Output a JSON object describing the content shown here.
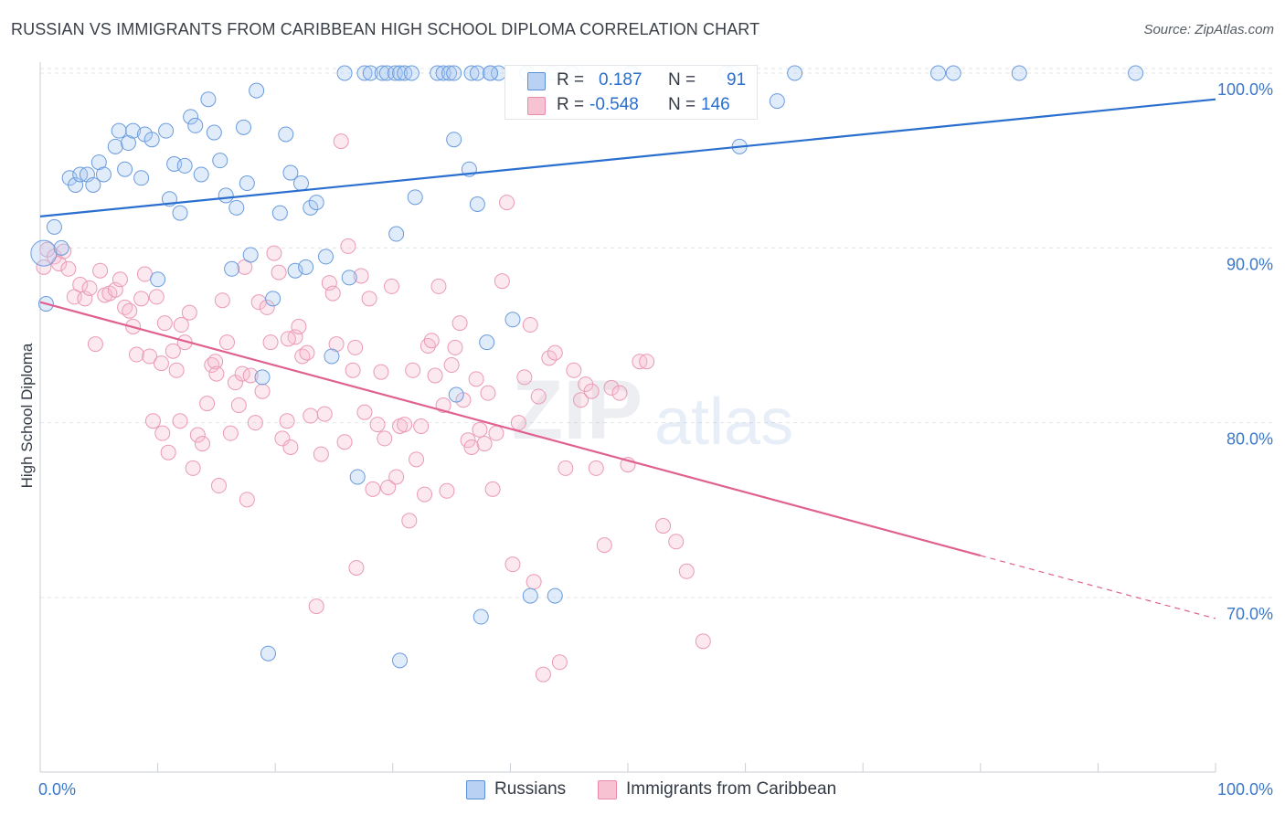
{
  "title": "RUSSIAN VS IMMIGRANTS FROM CARIBBEAN HIGH SCHOOL DIPLOMA CORRELATION CHART",
  "source": "Source: ZipAtlas.com",
  "watermark": {
    "zip": "ZIP",
    "atlas": "atlas"
  },
  "colors": {
    "russians": "#5b8fd6",
    "caribbean": "#e88aa8",
    "russians_line": "#2a6fd0",
    "caribbean_line": "#e0608f",
    "axis_label": "#3b78c9"
  },
  "stats": {
    "russians": {
      "r_label": "R =",
      "r_value": "0.187",
      "n_label": "N =",
      "n_value": "91"
    },
    "caribbean": {
      "r_label": "R =",
      "r_value": "-0.548",
      "n_label": "N =",
      "n_value": "146"
    }
  },
  "legend": {
    "russians": "Russians",
    "caribbean": "Immigrants from Caribbean"
  },
  "chart_data": {
    "type": "scatter",
    "title": "RUSSIAN VS IMMIGRANTS FROM CARIBBEAN HIGH SCHOOL DIPLOMA CORRELATION CHART",
    "xlabel": "",
    "ylabel": "High School Diploma",
    "xlim": [
      0,
      100
    ],
    "ylim": [
      59.5,
      102
    ],
    "x_tick_labels": [
      "0.0%",
      "100.0%"
    ],
    "y_ticks": [
      70,
      80,
      90,
      100
    ],
    "y_tick_labels": [
      "70.0%",
      "80.0%",
      "90.0%",
      "100.0%"
    ],
    "grid": true,
    "legend_position": "bottom-center",
    "series": [
      {
        "name": "Russians",
        "trend": [
          [
            0,
            91.8
          ],
          [
            100,
            98.5
          ]
        ],
        "points": [
          [
            0.3,
            89.7
          ],
          [
            0.5,
            86.8
          ],
          [
            1.2,
            91.2
          ],
          [
            1.8,
            90.0
          ],
          [
            2.5,
            94.0
          ],
          [
            3.0,
            93.6
          ],
          [
            3.4,
            94.2
          ],
          [
            4.0,
            94.2
          ],
          [
            4.5,
            93.6
          ],
          [
            5.0,
            94.9
          ],
          [
            5.4,
            94.2
          ],
          [
            6.4,
            95.8
          ],
          [
            6.7,
            96.7
          ],
          [
            7.2,
            94.5
          ],
          [
            7.5,
            96.0
          ],
          [
            7.9,
            96.7
          ],
          [
            8.6,
            94.0
          ],
          [
            8.9,
            96.5
          ],
          [
            9.5,
            96.2
          ],
          [
            10.0,
            88.2
          ],
          [
            10.7,
            96.7
          ],
          [
            11.0,
            92.8
          ],
          [
            11.4,
            94.8
          ],
          [
            11.9,
            92.0
          ],
          [
            12.3,
            94.7
          ],
          [
            12.8,
            97.5
          ],
          [
            13.2,
            97.0
          ],
          [
            13.7,
            94.2
          ],
          [
            14.3,
            98.5
          ],
          [
            14.8,
            96.6
          ],
          [
            15.3,
            95.0
          ],
          [
            15.8,
            93.0
          ],
          [
            16.3,
            88.8
          ],
          [
            16.7,
            92.3
          ],
          [
            17.3,
            96.9
          ],
          [
            17.6,
            93.7
          ],
          [
            17.9,
            89.6
          ],
          [
            18.4,
            99.0
          ],
          [
            18.9,
            82.6
          ],
          [
            19.4,
            66.8
          ],
          [
            19.8,
            87.1
          ],
          [
            20.4,
            92.0
          ],
          [
            20.9,
            96.5
          ],
          [
            21.3,
            94.3
          ],
          [
            21.7,
            88.7
          ],
          [
            22.2,
            93.7
          ],
          [
            22.6,
            88.9
          ],
          [
            23.0,
            92.3
          ],
          [
            23.5,
            92.6
          ],
          [
            24.3,
            89.5
          ],
          [
            24.8,
            83.8
          ],
          [
            25.9,
            100.0
          ],
          [
            26.3,
            88.3
          ],
          [
            27.0,
            76.9
          ],
          [
            27.6,
            100.0
          ],
          [
            28.1,
            100.0
          ],
          [
            29.1,
            100.0
          ],
          [
            29.5,
            100.0
          ],
          [
            30.2,
            100.0
          ],
          [
            30.6,
            100.0
          ],
          [
            31.0,
            100.0
          ],
          [
            31.6,
            100.0
          ],
          [
            33.8,
            100.0
          ],
          [
            34.3,
            100.0
          ],
          [
            34.8,
            100.0
          ],
          [
            35.2,
            100.0
          ],
          [
            36.7,
            100.0
          ],
          [
            37.2,
            100.0
          ],
          [
            38.3,
            100.0
          ],
          [
            39.0,
            100.0
          ],
          [
            30.3,
            90.8
          ],
          [
            30.6,
            66.4
          ],
          [
            31.9,
            92.9
          ],
          [
            35.2,
            96.2
          ],
          [
            35.4,
            81.6
          ],
          [
            36.5,
            94.5
          ],
          [
            37.2,
            92.5
          ],
          [
            37.5,
            68.9
          ],
          [
            38.0,
            84.6
          ],
          [
            38.3,
            100.0
          ],
          [
            40.2,
            85.9
          ],
          [
            41.4,
            100.0
          ],
          [
            41.7,
            70.1
          ],
          [
            43.6,
            100.0
          ],
          [
            43.8,
            70.1
          ],
          [
            45.2,
            100.0
          ],
          [
            50.3,
            100.0
          ],
          [
            58.4,
            100.0
          ],
          [
            58.9,
            100.0
          ],
          [
            59.5,
            95.8
          ],
          [
            62.7,
            98.4
          ],
          [
            64.2,
            100.0
          ],
          [
            76.4,
            100.0
          ],
          [
            77.7,
            100.0
          ],
          [
            83.3,
            100.0
          ],
          [
            93.2,
            100.0
          ]
        ]
      },
      {
        "name": "Immigrants from Caribbean",
        "trend": [
          [
            0,
            86.9
          ],
          [
            80,
            72.4
          ]
        ],
        "trend_dashed_end": [
          100,
          68.8
        ],
        "points": [
          [
            0.3,
            88.9
          ],
          [
            0.6,
            89.9
          ],
          [
            1.2,
            89.5
          ],
          [
            1.6,
            89.1
          ],
          [
            2.0,
            89.8
          ],
          [
            2.4,
            88.8
          ],
          [
            2.9,
            87.2
          ],
          [
            3.4,
            87.9
          ],
          [
            3.8,
            87.1
          ],
          [
            4.2,
            87.7
          ],
          [
            4.7,
            84.5
          ],
          [
            5.1,
            88.7
          ],
          [
            5.5,
            87.3
          ],
          [
            5.9,
            87.4
          ],
          [
            6.4,
            87.6
          ],
          [
            6.8,
            88.2
          ],
          [
            7.2,
            86.6
          ],
          [
            7.6,
            86.4
          ],
          [
            7.9,
            85.5
          ],
          [
            8.2,
            83.9
          ],
          [
            8.6,
            87.1
          ],
          [
            8.9,
            88.5
          ],
          [
            9.3,
            83.8
          ],
          [
            9.6,
            80.1
          ],
          [
            9.9,
            87.2
          ],
          [
            10.3,
            83.4
          ],
          [
            10.6,
            85.7
          ],
          [
            10.9,
            78.3
          ],
          [
            11.3,
            84.1
          ],
          [
            11.6,
            83.0
          ],
          [
            11.9,
            80.1
          ],
          [
            12.3,
            84.6
          ],
          [
            12.7,
            86.3
          ],
          [
            13.0,
            77.4
          ],
          [
            13.4,
            79.3
          ],
          [
            13.8,
            78.8
          ],
          [
            14.2,
            81.1
          ],
          [
            14.6,
            83.3
          ],
          [
            14.9,
            83.5
          ],
          [
            15.2,
            76.4
          ],
          [
            15.5,
            87.0
          ],
          [
            15.9,
            84.6
          ],
          [
            16.2,
            79.4
          ],
          [
            16.6,
            82.3
          ],
          [
            16.9,
            81.0
          ],
          [
            17.2,
            82.8
          ],
          [
            17.6,
            75.6
          ],
          [
            17.9,
            82.7
          ],
          [
            18.3,
            80.0
          ],
          [
            18.6,
            86.9
          ],
          [
            18.9,
            81.8
          ],
          [
            19.3,
            86.6
          ],
          [
            19.6,
            84.6
          ],
          [
            19.9,
            89.7
          ],
          [
            20.3,
            88.6
          ],
          [
            20.6,
            79.1
          ],
          [
            21.0,
            80.1
          ],
          [
            21.3,
            78.6
          ],
          [
            21.7,
            84.9
          ],
          [
            22.0,
            85.5
          ],
          [
            22.3,
            83.8
          ],
          [
            22.7,
            84.0
          ],
          [
            23.0,
            80.4
          ],
          [
            23.5,
            69.5
          ],
          [
            23.9,
            78.2
          ],
          [
            24.2,
            80.5
          ],
          [
            24.6,
            88.0
          ],
          [
            24.9,
            87.4
          ],
          [
            25.2,
            84.5
          ],
          [
            25.6,
            96.1
          ],
          [
            25.9,
            78.9
          ],
          [
            26.2,
            90.1
          ],
          [
            26.6,
            83.0
          ],
          [
            26.9,
            71.7
          ],
          [
            27.3,
            88.4
          ],
          [
            27.6,
            80.6
          ],
          [
            28.0,
            87.1
          ],
          [
            28.3,
            76.2
          ],
          [
            28.7,
            79.9
          ],
          [
            29.0,
            82.9
          ],
          [
            29.3,
            79.1
          ],
          [
            29.6,
            76.3
          ],
          [
            29.9,
            87.8
          ],
          [
            30.3,
            76.9
          ],
          [
            30.6,
            79.8
          ],
          [
            31.0,
            79.9
          ],
          [
            31.4,
            74.4
          ],
          [
            31.7,
            83.0
          ],
          [
            32.0,
            77.9
          ],
          [
            32.4,
            79.8
          ],
          [
            32.7,
            75.9
          ],
          [
            33.0,
            84.4
          ],
          [
            33.3,
            84.7
          ],
          [
            33.6,
            82.7
          ],
          [
            33.9,
            87.8
          ],
          [
            34.3,
            81.0
          ],
          [
            34.6,
            76.1
          ],
          [
            35.0,
            83.3
          ],
          [
            35.3,
            84.3
          ],
          [
            35.7,
            85.7
          ],
          [
            36.0,
            81.3
          ],
          [
            36.4,
            79.0
          ],
          [
            36.7,
            78.6
          ],
          [
            37.1,
            82.5
          ],
          [
            37.4,
            79.6
          ],
          [
            37.8,
            78.8
          ],
          [
            38.1,
            81.7
          ],
          [
            38.5,
            76.2
          ],
          [
            38.8,
            79.4
          ],
          [
            39.3,
            88.1
          ],
          [
            39.7,
            92.6
          ],
          [
            40.2,
            71.9
          ],
          [
            40.7,
            80.0
          ],
          [
            41.2,
            82.6
          ],
          [
            41.7,
            85.6
          ],
          [
            42.0,
            70.9
          ],
          [
            42.4,
            81.5
          ],
          [
            42.8,
            65.6
          ],
          [
            43.3,
            83.7
          ],
          [
            43.8,
            84.0
          ],
          [
            44.2,
            66.3
          ],
          [
            44.7,
            77.4
          ],
          [
            45.4,
            83.0
          ],
          [
            46.0,
            81.3
          ],
          [
            46.4,
            82.2
          ],
          [
            46.9,
            81.8
          ],
          [
            47.3,
            77.4
          ],
          [
            48.0,
            73.0
          ],
          [
            48.6,
            82.0
          ],
          [
            49.3,
            81.7
          ],
          [
            50.0,
            77.6
          ],
          [
            51.0,
            83.5
          ],
          [
            51.6,
            83.5
          ],
          [
            53.0,
            74.1
          ],
          [
            54.1,
            73.2
          ],
          [
            55.0,
            71.5
          ],
          [
            56.4,
            67.5
          ],
          [
            10.4,
            79.4
          ],
          [
            17.4,
            88.9
          ],
          [
            21.1,
            84.8
          ],
          [
            26.8,
            84.3
          ],
          [
            15.0,
            82.8
          ],
          [
            12.0,
            85.6
          ]
        ]
      }
    ]
  }
}
